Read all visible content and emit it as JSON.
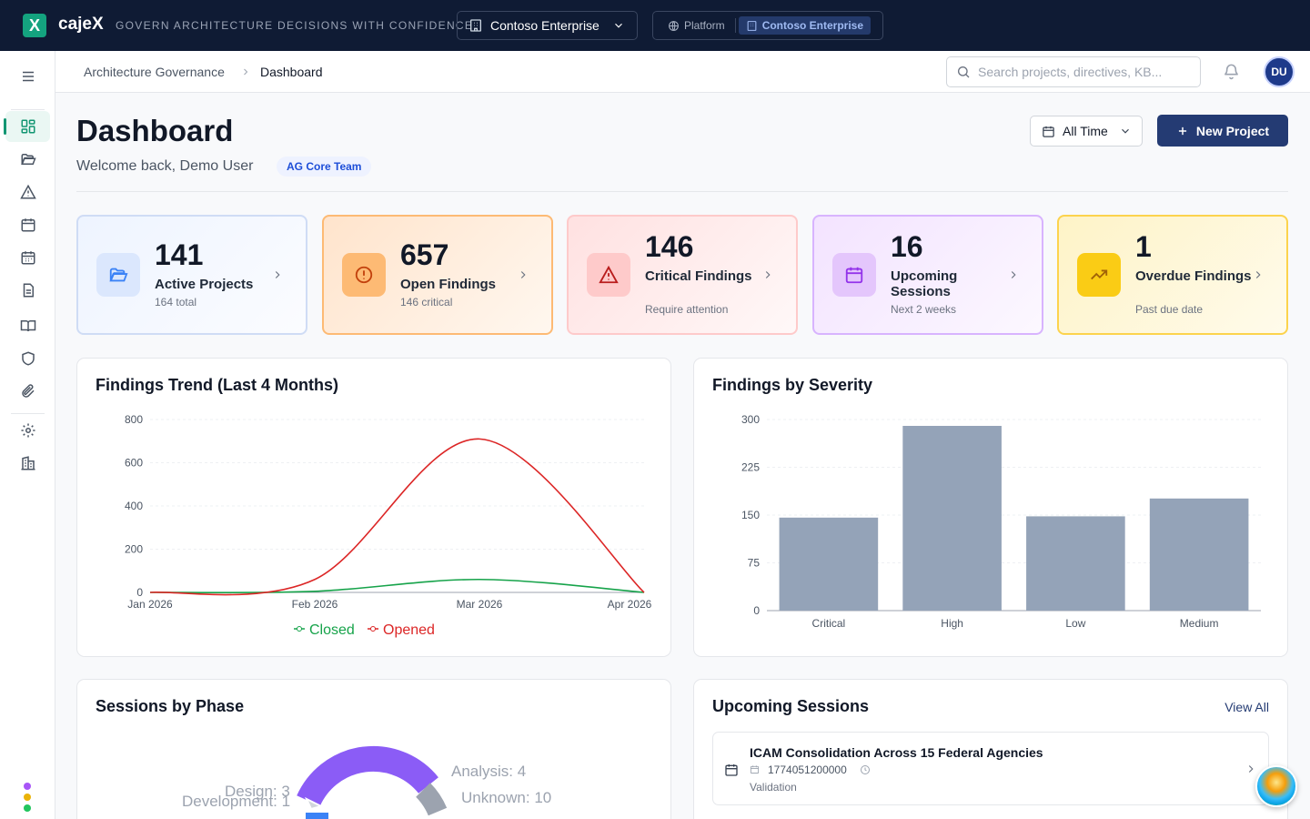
{
  "app": {
    "logo_letter": "X",
    "brand": "cajeX",
    "tagline": "GOVERN ARCHITECTURE DECISIONS WITH CONFIDENCE"
  },
  "org_select": {
    "value": "Contoso Enterprise"
  },
  "switcher": {
    "platform": "Platform",
    "enterprise": "Contoso Enterprise"
  },
  "breadcrumb": {
    "parent": "Architecture Governance",
    "current": "Dashboard"
  },
  "search": {
    "placeholder": "Search projects, directives, KB..."
  },
  "user": {
    "initials": "DU"
  },
  "page": {
    "title": "Dashboard",
    "welcome": "Welcome back, Demo User",
    "team_badge": "AG Core Team"
  },
  "controls": {
    "time_range": "All Time",
    "new_project": "New Project"
  },
  "stats": [
    {
      "value": "141",
      "label": "Active Projects",
      "sub": "164 total",
      "accent": "#3b82f6"
    },
    {
      "value": "657",
      "label": "Open Findings",
      "sub": "146 critical",
      "accent": "#f97316"
    },
    {
      "value": "146",
      "label": "Critical Findings",
      "sub": "Require attention",
      "accent": "#dc2626"
    },
    {
      "value": "16",
      "label": "Upcoming Sessions",
      "sub": "Next 2 weeks",
      "accent": "#9333ea"
    },
    {
      "value": "1",
      "label": "Overdue Findings",
      "sub": "Past due date",
      "accent": "#eab308"
    }
  ],
  "chart_data": [
    {
      "type": "line",
      "title": "Findings Trend (Last 4 Months)",
      "x": [
        "Jan 2026",
        "Feb 2026",
        "Mar 2026",
        "Apr 2026"
      ],
      "ylim": [
        0,
        800
      ],
      "yticks": [
        0,
        200,
        400,
        600,
        800
      ],
      "series": [
        {
          "name": "Closed",
          "values": [
            0,
            5,
            60,
            0
          ],
          "color": "#16a34a"
        },
        {
          "name": "Opened",
          "values": [
            0,
            60,
            710,
            0
          ],
          "color": "#dc2626"
        }
      ],
      "legend": "bottom",
      "grid": true
    },
    {
      "type": "bar",
      "title": "Findings by Severity",
      "categories": [
        "Critical",
        "High",
        "Low",
        "Medium"
      ],
      "values": [
        146,
        290,
        148,
        176
      ],
      "ylim": [
        0,
        300
      ],
      "yticks": [
        0,
        75,
        150,
        225,
        300
      ],
      "color": "#94a3b8",
      "grid": true
    },
    {
      "type": "pie",
      "title": "Sessions by Phase",
      "labels": [
        "Analysis: 4",
        "Unknown: 10",
        "Design: 3",
        "Development: 1"
      ],
      "values": [
        4,
        10,
        3,
        1
      ]
    }
  ],
  "sessions": {
    "title": "Upcoming Sessions",
    "view_all": "View All",
    "items": [
      {
        "title": "ICAM Consolidation Across 15 Federal Agencies",
        "time": "1774051200000",
        "phase": "Validation"
      }
    ]
  }
}
